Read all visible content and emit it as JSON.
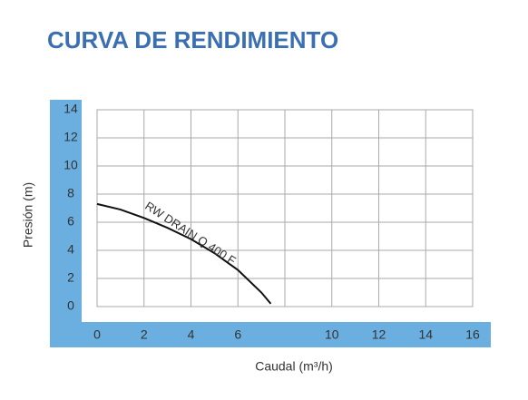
{
  "chart_data": {
    "type": "line",
    "title": "CURVA DE RENDIMIENTO",
    "x_label": "Caudal (m³/h)",
    "y_label": "Presión  (m)",
    "x": [
      0,
      1,
      2,
      3,
      4,
      5,
      6,
      7,
      7.4
    ],
    "series": [
      {
        "name": "RW DRAIN Q 400 F",
        "color": "#111111",
        "values": [
          7.3,
          6.9,
          6.3,
          5.6,
          4.8,
          3.8,
          2.6,
          1.0,
          0.2
        ]
      }
    ],
    "xlim": [
      0,
      16
    ],
    "ylim": [
      0,
      14
    ],
    "xticks": [
      0,
      2,
      4,
      6,
      10,
      12,
      14,
      16
    ],
    "xgrid": [
      0,
      2,
      4,
      6,
      8,
      10,
      12,
      14,
      16
    ],
    "yticks": [
      0,
      2,
      4,
      6,
      8,
      10,
      12,
      14
    ],
    "grid": true,
    "axis_band_color": "#6aafe0"
  }
}
